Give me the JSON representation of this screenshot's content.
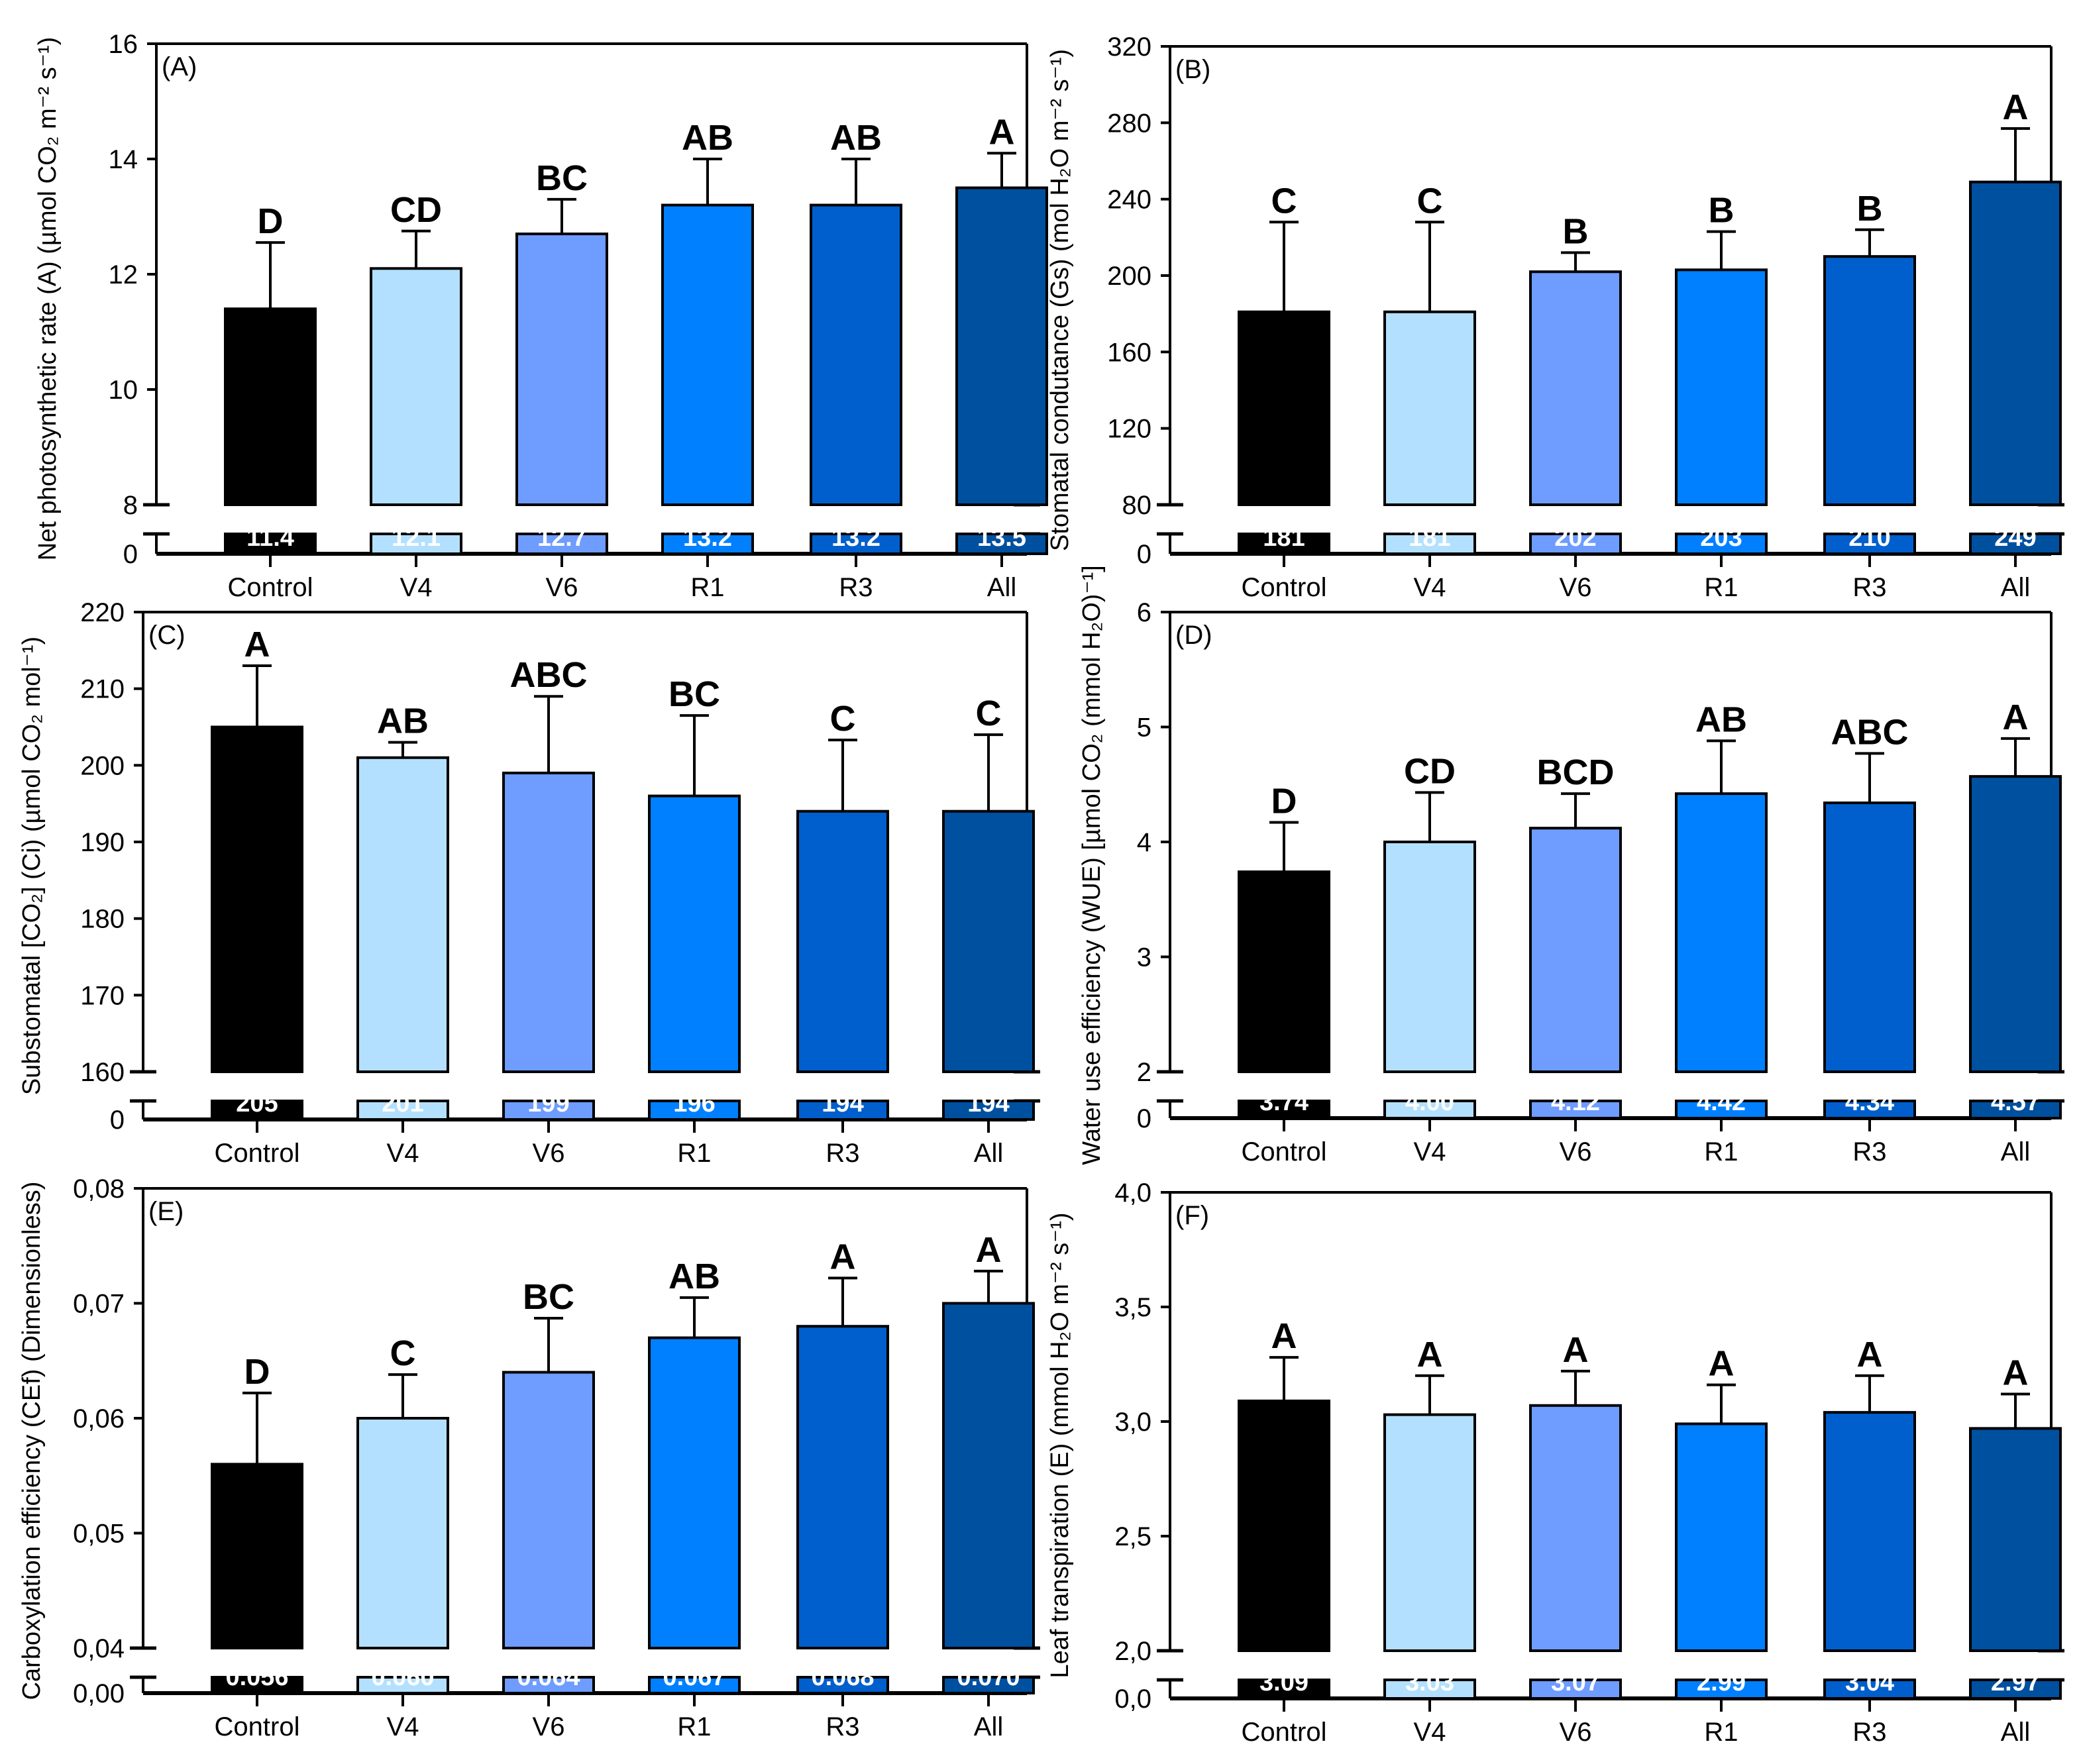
{
  "colors": [
    "#000000",
    "#b3e0ff",
    "#6e9cff",
    "#0080ff",
    "#005fcc",
    "#0050a0"
  ],
  "categories": [
    "Control",
    "V4",
    "V6",
    "R1",
    "R3",
    "All"
  ],
  "chart_data": [
    {
      "type": "bar",
      "panel": "(A)",
      "ylabel": "Net photosynthetic rate (A) (µmol CO₂ m⁻² s⁻¹)",
      "ylim": [
        8,
        16
      ],
      "lower_tick": "0",
      "ticks": [
        8,
        10,
        12,
        14,
        16
      ],
      "tick_labels": [
        "8",
        "10",
        "12",
        "14",
        "16"
      ],
      "values": [
        11.4,
        12.1,
        12.7,
        13.2,
        13.2,
        13.5
      ],
      "value_labels": [
        "11.4",
        "12.1",
        "12.7",
        "13.2",
        "13.2",
        "13.5"
      ],
      "error_top": [
        12.55,
        12.75,
        13.3,
        14.0,
        14.0,
        14.1
      ],
      "letters": [
        "D",
        "CD",
        "BC",
        "AB",
        "AB",
        "A"
      ]
    },
    {
      "type": "bar",
      "panel": "(B)",
      "ylabel": "Stomatal condutance (Gs) (mol H₂O m⁻² s⁻¹)",
      "ylim": [
        80,
        320
      ],
      "lower_tick": "0",
      "ticks": [
        80,
        120,
        160,
        200,
        240,
        280,
        320
      ],
      "tick_labels": [
        "80",
        "120",
        "160",
        "200",
        "240",
        "280",
        "320"
      ],
      "values": [
        181,
        181,
        202,
        203,
        210,
        249
      ],
      "value_labels": [
        "181",
        "181",
        "202",
        "203",
        "210",
        "249"
      ],
      "error_top": [
        228,
        228,
        212,
        223,
        224,
        277
      ],
      "letters": [
        "C",
        "C",
        "B",
        "B",
        "B",
        "A"
      ]
    },
    {
      "type": "bar",
      "panel": "(C)",
      "ylabel": "Substomatal [CO₂] (Ci) (µmol CO₂ mol⁻¹)",
      "ylim": [
        160,
        220
      ],
      "lower_tick": "0",
      "ticks": [
        160,
        170,
        180,
        190,
        200,
        210,
        220
      ],
      "tick_labels": [
        "160",
        "170",
        "180",
        "190",
        "200",
        "210",
        "220"
      ],
      "values": [
        205,
        201,
        199,
        196,
        194,
        194
      ],
      "value_labels": [
        "205",
        "201",
        "199",
        "196",
        "194",
        "194"
      ],
      "error_top": [
        213,
        203,
        209,
        206.5,
        203.3,
        204
      ],
      "letters": [
        "A",
        "AB",
        "ABC",
        "BC",
        "C",
        "C"
      ]
    },
    {
      "type": "bar",
      "panel": "(D)",
      "ylabel": "Water use efficiency (WUE) [µmol CO₂ (mmol H₂O)⁻¹]",
      "ylim": [
        2,
        6
      ],
      "lower_tick": "0",
      "ticks": [
        2,
        3,
        4,
        5,
        6
      ],
      "tick_labels": [
        "2",
        "3",
        "4",
        "5",
        "6"
      ],
      "values": [
        3.74,
        4.0,
        4.12,
        4.42,
        4.34,
        4.57
      ],
      "value_labels": [
        "3.74",
        "4.00",
        "4.12",
        "4.42",
        "4.34",
        "4.57"
      ],
      "error_top": [
        4.17,
        4.43,
        4.42,
        4.88,
        4.77,
        4.9
      ],
      "letters": [
        "D",
        "CD",
        "BCD",
        "AB",
        "ABC",
        "A"
      ]
    },
    {
      "type": "bar",
      "panel": "(E)",
      "ylabel": "Carboxylation efficiency (CEf) (Dimensionless)",
      "ylim": [
        0.04,
        0.08
      ],
      "lower_tick": "0,00",
      "ticks": [
        0.04,
        0.05,
        0.06,
        0.07,
        0.08
      ],
      "tick_labels": [
        "0,04",
        "0,05",
        "0,06",
        "0,07",
        "0,08"
      ],
      "values": [
        0.056,
        0.06,
        0.064,
        0.067,
        0.068,
        0.07
      ],
      "value_labels": [
        "0.056",
        "0.060",
        "0.064",
        "0.067",
        "0.068",
        "0.070"
      ],
      "error_top": [
        0.0622,
        0.0638,
        0.0687,
        0.0705,
        0.0722,
        0.0728
      ],
      "letters": [
        "D",
        "C",
        "BC",
        "AB",
        "A",
        "A"
      ]
    },
    {
      "type": "bar",
      "panel": "(F)",
      "ylabel": "Leaf transpiration (E) (mmol H₂O m⁻² s⁻¹)",
      "ylim": [
        2.0,
        4.0
      ],
      "lower_tick": "0,0",
      "ticks": [
        2.0,
        2.5,
        3.0,
        3.5,
        4.0
      ],
      "tick_labels": [
        "2,0",
        "2,5",
        "3,0",
        "3,5",
        "4,0"
      ],
      "values": [
        3.09,
        3.03,
        3.07,
        2.99,
        3.04,
        2.97
      ],
      "value_labels": [
        "3.09",
        "3.03",
        "3.07",
        "2.99",
        "3.04",
        "2.97"
      ],
      "error_top": [
        3.28,
        3.2,
        3.22,
        3.16,
        3.2,
        3.12
      ],
      "letters": [
        "A",
        "A",
        "A",
        "A",
        "A",
        "A"
      ]
    }
  ]
}
